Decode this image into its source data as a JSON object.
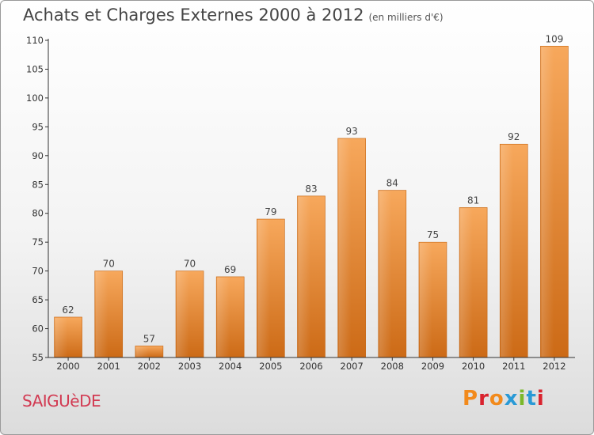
{
  "header": {
    "title": "Achats et Charges Externes 2000 à 2012",
    "subtitle": "(en milliers d'€)"
  },
  "footer": {
    "commune": "SAIGUèDE",
    "logo": "Proxiti"
  },
  "colors": {
    "bar_light": "#f7a85c",
    "bar_dark": "#cc6a16",
    "logo_letters": [
      "#f28a1c",
      "#d9232e",
      "#f28a1c",
      "#2a9ad6",
      "#7bb82a",
      "#2a9ad6",
      "#d9232e"
    ]
  },
  "chart_data": {
    "type": "bar",
    "title": "Achats et Charges Externes 2000 à 2012",
    "categories": [
      "2000",
      "2001",
      "2002",
      "2003",
      "2004",
      "2005",
      "2006",
      "2007",
      "2008",
      "2009",
      "2010",
      "2011",
      "2012"
    ],
    "values": [
      62,
      70,
      57,
      70,
      69,
      79,
      83,
      93,
      84,
      75,
      81,
      92,
      109
    ],
    "data_labels": [
      "62",
      "70",
      "57",
      "70",
      "69",
      "79",
      "83",
      "93",
      "84",
      "75",
      "81",
      "92",
      "109"
    ],
    "ylim": [
      55,
      110
    ],
    "yticks": [
      55,
      60,
      65,
      70,
      75,
      80,
      85,
      90,
      95,
      100,
      105,
      110
    ],
    "ytick_labels": [
      "55",
      "60",
      "65",
      "70",
      "75",
      "80",
      "85",
      "90",
      "95",
      "100",
      "105",
      "110"
    ],
    "grid": false,
    "legend": "none"
  }
}
